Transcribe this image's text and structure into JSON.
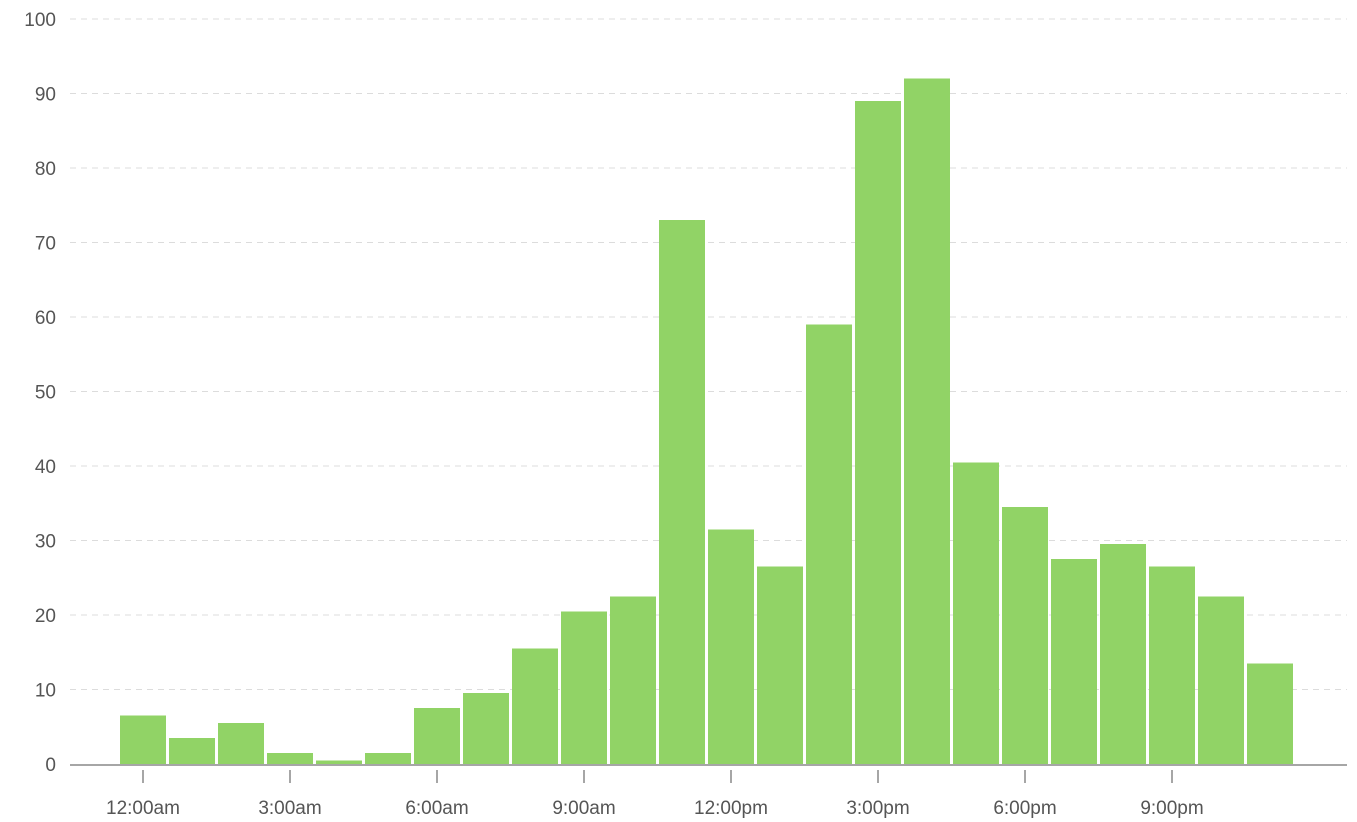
{
  "chart_data": {
    "type": "bar",
    "title": "",
    "xlabel": "",
    "ylabel": "",
    "ylim": [
      0,
      100
    ],
    "grid": true,
    "bar_color": "#91d366",
    "y_ticks": [
      0,
      10,
      20,
      30,
      40,
      50,
      60,
      70,
      80,
      90,
      100
    ],
    "x_tick_labels": [
      "12:00am",
      "3:00am",
      "6:00am",
      "9:00am",
      "12:00pm",
      "3:00pm",
      "6:00pm",
      "9:00pm"
    ],
    "x_tick_hours": [
      0,
      3,
      6,
      9,
      12,
      15,
      18,
      21
    ],
    "categories": [
      "0",
      "1",
      "2",
      "3",
      "4",
      "5",
      "6",
      "7",
      "8",
      "9",
      "10",
      "11",
      "12",
      "13",
      "14",
      "15",
      "16",
      "17",
      "18",
      "19",
      "20",
      "21",
      "22",
      "23"
    ],
    "values": [
      6.5,
      3.5,
      5.5,
      1.5,
      0.5,
      1.5,
      7.5,
      9.5,
      15.5,
      20.5,
      22.5,
      73,
      31.5,
      26.5,
      59,
      89,
      92,
      40.5,
      34.5,
      27.5,
      29.5,
      26.5,
      22.5,
      13.5
    ]
  }
}
